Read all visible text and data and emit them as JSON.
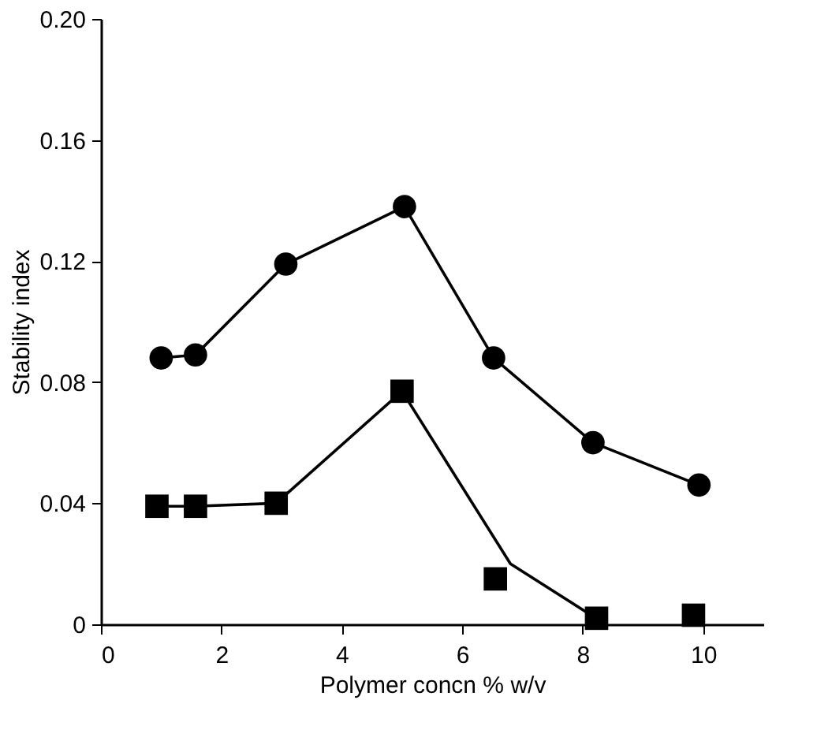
{
  "chart_data": {
    "type": "line",
    "xlabel": "Polymer concn % w/v",
    "ylabel": "Stability index",
    "xlim": [
      0,
      11
    ],
    "xticks": [
      0,
      2,
      4,
      6,
      8,
      10
    ],
    "ylim": [
      0,
      0.2
    ],
    "yticks": [
      {
        "value": 0,
        "label": "0"
      },
      0.04,
      0.08,
      0.12,
      0.16,
      {
        "value": 0.2,
        "label": "0.20"
      }
    ],
    "grid": false,
    "series": [
      {
        "type": "line",
        "marker": "circle",
        "color": "#000000",
        "x": [
          1.0,
          1.57,
          3.07,
          5.04,
          6.52,
          8.17,
          9.93
        ],
        "values": [
          0.088,
          0.089,
          0.119,
          0.138,
          0.088,
          0.06,
          0.046
        ]
      },
      {
        "type": "scatter",
        "marker": "square",
        "color": "#000000",
        "x": [
          0.93,
          1.57,
          2.91,
          5.0,
          6.55,
          8.23,
          9.84
        ],
        "values": [
          0.039,
          0.039,
          0.04,
          0.077,
          0.015,
          0.002,
          0.003
        ]
      },
      {
        "type": "line",
        "marker": "none",
        "color": "#000000",
        "x": [
          0.93,
          1.57,
          2.91,
          5.0,
          6.8,
          8.3
        ],
        "values": [
          0.039,
          0.039,
          0.04,
          0.077,
          0.02,
          0.001
        ]
      }
    ]
  }
}
